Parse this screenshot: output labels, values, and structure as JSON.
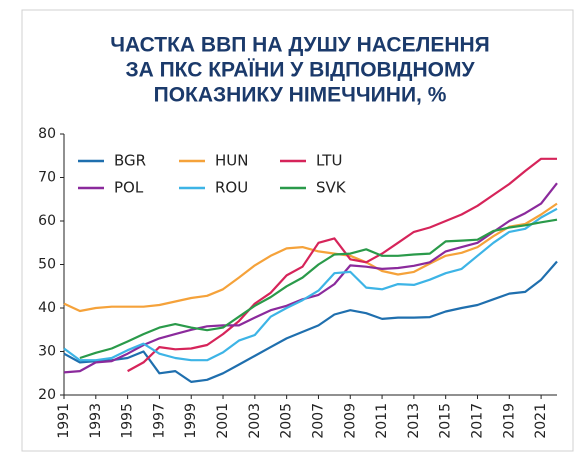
{
  "chart_data": {
    "type": "line",
    "title": [
      "ЧАСТКА ВВП НА ДУШУ НАСЕЛЕННЯ",
      "ЗА ПКС КРАЇНИ У ВІДПОВІДНОМУ",
      "ПОКАЗНИКУ НІМЕЧЧИНИ, %"
    ],
    "x": [
      1991,
      1992,
      1993,
      1994,
      1995,
      1996,
      1997,
      1998,
      1999,
      2000,
      2001,
      2002,
      2003,
      2004,
      2005,
      2006,
      2007,
      2008,
      2009,
      2010,
      2011,
      2012,
      2013,
      2014,
      2015,
      2016,
      2017,
      2018,
      2019,
      2020,
      2021,
      2022
    ],
    "xlim": [
      1991,
      2022
    ],
    "xticks": [
      1991,
      1993,
      1995,
      1997,
      1999,
      2001,
      2003,
      2005,
      2007,
      2009,
      2011,
      2013,
      2015,
      2017,
      2019,
      2021
    ],
    "ylim": [
      20,
      80
    ],
    "yticks": [
      20,
      30,
      40,
      50,
      60,
      70,
      80
    ],
    "legend": "upper left",
    "series": [
      {
        "name": "BGR",
        "color": "#1f6fae",
        "values": [
          29.5,
          27.5,
          27.8,
          28,
          28.5,
          30,
          25,
          25.5,
          23,
          23.5,
          25,
          27,
          29,
          31,
          33,
          34.5,
          36,
          38.5,
          39.5,
          38.8,
          37.5,
          37.8,
          37.8,
          37.9,
          39.2,
          40,
          40.7,
          42,
          43.3,
          43.7,
          46.5,
          50.7
        ]
      },
      {
        "name": "HUN",
        "color": "#f5a23a",
        "values": [
          41,
          39.3,
          40,
          40.3,
          40.3,
          40.3,
          40.7,
          41.5,
          42.3,
          42.8,
          44.3,
          47,
          49.8,
          52,
          53.7,
          54,
          53,
          52.5,
          52,
          50.5,
          48.5,
          47.7,
          48.3,
          50.2,
          52,
          52.7,
          54,
          56.5,
          58.7,
          59.3,
          61.5,
          64
        ]
      },
      {
        "name": "LTU",
        "color": "#d6245a",
        "values": [
          null,
          null,
          null,
          null,
          25.5,
          27.5,
          31,
          30.5,
          30.7,
          31.5,
          34,
          37,
          41,
          43.5,
          47.5,
          49.5,
          55,
          56,
          51.2,
          50.5,
          52.5,
          55,
          57.5,
          58.5,
          60,
          61.5,
          63.5,
          66,
          68.5,
          71.5,
          74.3,
          74.3
        ]
      },
      {
        "name": "POL",
        "color": "#8b2a9c",
        "values": [
          25.2,
          25.5,
          27.5,
          27.8,
          29.5,
          31.5,
          33,
          34,
          35,
          35.8,
          36,
          36,
          37.8,
          39.5,
          40.5,
          42,
          43,
          45.5,
          49.8,
          49.5,
          49,
          49.2,
          49.7,
          50.5,
          53,
          54,
          55,
          57.5,
          60,
          61.8,
          64,
          68.7
        ]
      },
      {
        "name": "ROU",
        "color": "#3db4e6",
        "values": [
          30.7,
          28,
          28,
          28.5,
          30.3,
          31.8,
          29.5,
          28.5,
          28,
          28,
          29.8,
          32.5,
          33.8,
          38,
          40,
          41.8,
          44,
          48,
          48.3,
          44.7,
          44.3,
          45.5,
          45.3,
          46.5,
          48,
          49,
          52,
          55,
          57.5,
          58.2,
          60.8,
          62.8
        ]
      },
      {
        "name": "SVK",
        "color": "#2a9a4a",
        "values": [
          null,
          28.5,
          29.7,
          30.7,
          32.3,
          34,
          35.5,
          36.3,
          35.5,
          34.9,
          35.5,
          38,
          40.5,
          42.5,
          45,
          47,
          50,
          52.3,
          52.5,
          53.5,
          52,
          52,
          52.3,
          52.5,
          55.3,
          55.5,
          55.7,
          57.7,
          58.5,
          59,
          59.7,
          60.3
        ]
      }
    ]
  }
}
